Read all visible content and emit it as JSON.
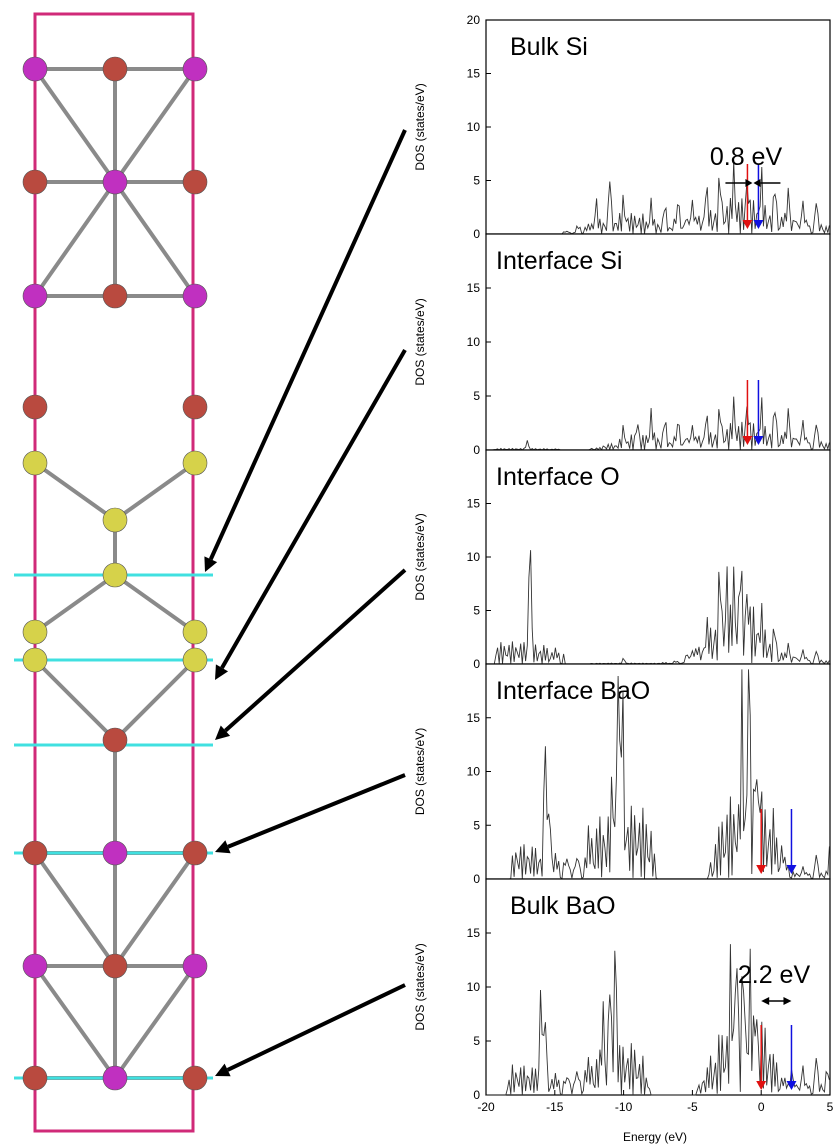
{
  "structure": {
    "atom_colors": {
      "ba": "#b94a3f",
      "si": "#c030c0",
      "o": "#d6d24a"
    },
    "cell_color": "#d02a78",
    "plane_color": "#40e0e0",
    "bond_color": "#8a8a8a"
  },
  "chart_data": [
    {
      "type": "line",
      "title": "Bulk Si",
      "ylabel": "DOS (states/eV)",
      "xlim": [
        -20,
        5
      ],
      "ylim": [
        0,
        20
      ],
      "yticks": [
        0,
        5,
        10,
        15,
        20
      ],
      "peaks": [
        [
          -12,
          2.5
        ],
        [
          -11,
          4.8
        ],
        [
          -10,
          2
        ],
        [
          -8,
          2.2
        ],
        [
          -7,
          2
        ],
        [
          -6,
          2.5
        ],
        [
          -5,
          2.8
        ],
        [
          -4,
          3.5
        ],
        [
          -3,
          4
        ],
        [
          -2,
          4.2
        ],
        [
          -1,
          3.5
        ],
        [
          0,
          3.8
        ],
        [
          1,
          3.2
        ],
        [
          2,
          3.5
        ],
        [
          3,
          2.8
        ],
        [
          4,
          2.5
        ]
      ],
      "arrows": {
        "red": -1.0,
        "blue": -0.2
      },
      "gap_label": "0.8 eV"
    },
    {
      "type": "line",
      "title": "Interface Si",
      "ylabel": "DOS (states/eV)",
      "xlim": [
        -20,
        5
      ],
      "ylim": [
        0,
        20
      ],
      "yticks": [
        0,
        5,
        10,
        15
      ],
      "peaks": [
        [
          -17,
          0.8
        ],
        [
          -10,
          1.5
        ],
        [
          -9,
          2
        ],
        [
          -8,
          2.5
        ],
        [
          -7,
          2
        ],
        [
          -6,
          2.2
        ],
        [
          -5,
          2
        ],
        [
          -4,
          2.5
        ],
        [
          -3,
          2.8
        ],
        [
          -2,
          3
        ],
        [
          -1,
          3
        ],
        [
          0,
          2.8
        ],
        [
          1,
          3
        ],
        [
          2,
          3.2
        ],
        [
          3,
          2.5
        ],
        [
          4,
          2
        ]
      ],
      "arrows": {
        "red": -1.0,
        "blue": -0.2
      },
      "gap_label": ""
    },
    {
      "type": "line",
      "title": "Interface O",
      "ylabel": "DOS (states/eV)",
      "xlim": [
        -20,
        5
      ],
      "ylim": [
        0,
        20
      ],
      "yticks": [
        0,
        5,
        10,
        15
      ],
      "peaks": [
        [
          -16.8,
          11.8
        ],
        [
          -10,
          0.5
        ],
        [
          -5,
          1
        ],
        [
          -4,
          1.5
        ],
        [
          -3,
          6.5
        ],
        [
          -2.5,
          5
        ],
        [
          -2,
          4.8
        ],
        [
          -1.5,
          7
        ],
        [
          -1,
          4
        ],
        [
          0,
          2.5
        ],
        [
          1,
          2
        ],
        [
          2,
          1.5
        ],
        [
          3,
          1.2
        ],
        [
          4,
          1
        ]
      ],
      "arrows": {
        "red": null,
        "blue": null
      },
      "gap_label": ""
    },
    {
      "type": "line",
      "title": "Interface BaO",
      "ylabel": "DOS (states/eV)",
      "xlim": [
        -20,
        5
      ],
      "ylim": [
        0,
        20
      ],
      "yticks": [
        0,
        5,
        10,
        15
      ],
      "peaks": [
        [
          -15.7,
          12.2
        ],
        [
          -15.4,
          6.5
        ],
        [
          -10.8,
          5.5
        ],
        [
          -10.4,
          17.8
        ],
        [
          -10.1,
          15
        ],
        [
          -1.4,
          11.8
        ],
        [
          -0.9,
          18.5
        ],
        [
          -0.4,
          8
        ],
        [
          -0.1,
          5.5
        ],
        [
          3,
          1
        ],
        [
          4,
          2
        ],
        [
          5,
          2.5
        ]
      ],
      "arrows": {
        "red": 0,
        "blue": 2.2
      },
      "gap_label": ""
    },
    {
      "type": "line",
      "title": "Bulk BaO",
      "ylabel": "DOS (states/eV)",
      "xlim": [
        -20,
        5
      ],
      "ylim": [
        0,
        20
      ],
      "yticks": [
        0,
        5,
        10,
        15
      ],
      "peaks": [
        [
          -16,
          9.3
        ],
        [
          -15.7,
          6.5
        ],
        [
          -11.5,
          6
        ],
        [
          -11,
          9
        ],
        [
          -10.6,
          12
        ],
        [
          -2.2,
          8
        ],
        [
          -1.8,
          10.8
        ],
        [
          -1.3,
          9
        ],
        [
          -0.8,
          7
        ],
        [
          -0.4,
          5
        ],
        [
          2.2,
          2.3
        ],
        [
          3,
          2.5
        ],
        [
          4,
          3
        ],
        [
          4.8,
          2
        ]
      ],
      "arrows": {
        "red": 0,
        "blue": 2.2
      },
      "gap_label": "2.2 eV"
    }
  ],
  "xaxis": {
    "ticks": [
      "-20",
      "-15",
      "-10",
      "-5",
      "0",
      "5"
    ],
    "label": "Energy (eV)"
  }
}
